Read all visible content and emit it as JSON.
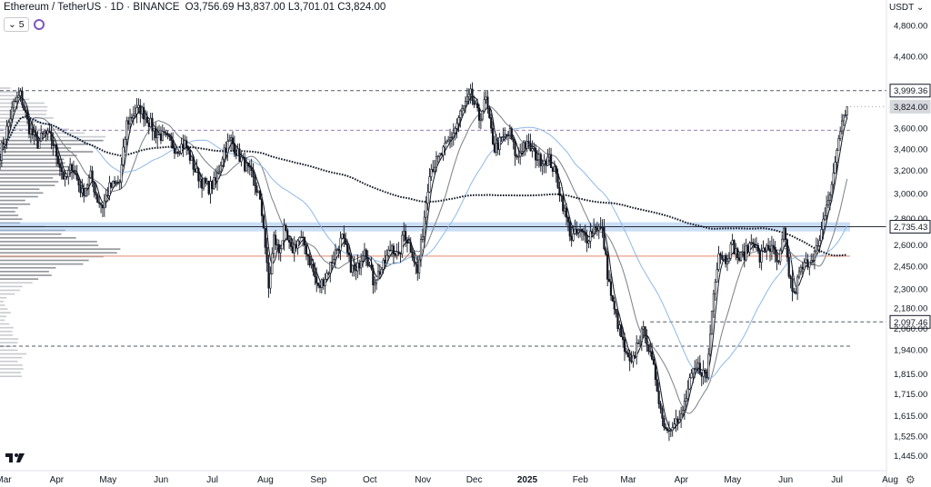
{
  "header": {
    "symbol": "Ethereum / TetherUS · 1D · BINANCE",
    "open_label": "O",
    "open": "3,756.69",
    "high_label": "H",
    "high": "3,837.00",
    "low_label": "L",
    "low": "3,701.01",
    "close_label": "C",
    "close": "3,824.00",
    "indicator_value": "5"
  },
  "currency": "USDT",
  "colors": {
    "candle": "#131722",
    "ma_slow": "#131722",
    "ma_fast": "#131722",
    "ma_light": "#7b7f86",
    "ma_blue": "#8fb9e6",
    "support_band": "#9fc3ec",
    "poc_line": "#e8a08a",
    "dashed_level": "#555a66",
    "volume_profile": "#787b86"
  },
  "chart_data": {
    "type": "candlestick",
    "symbol": "ETHUSDT",
    "interval": "1D",
    "y_scale": "log",
    "ylim": [
      1385,
      5150
    ],
    "y_ticks": [
      "4,800.00",
      "4,400.00",
      "3,999.36",
      "3,824.00",
      "3,600.00",
      "3,400.00",
      "3,200.00",
      "3,000.00",
      "2,800.00",
      "2,735.43",
      "2,600.00",
      "2,450.00",
      "2,300.00",
      "2,180.00",
      "2,097.46",
      "2,060.00",
      "1,940.00",
      "1,815.00",
      "1,715.00",
      "1,615.00",
      "1,525.00",
      "1,445.00"
    ],
    "y_tick_values": [
      4800,
      4400,
      3999.36,
      3824,
      3600,
      3400,
      3200,
      3000,
      2800,
      2735.43,
      2600,
      2450,
      2300,
      2180,
      2097.46,
      2060,
      1940,
      1815,
      1715,
      1615,
      1525,
      1445
    ],
    "x_ticks": [
      "Mar",
      "Apr",
      "May",
      "Jun",
      "Jul",
      "Aug",
      "Sep",
      "Oct",
      "Nov",
      "Dec",
      "2025",
      "Feb",
      "Mar",
      "Apr",
      "May",
      "Jun",
      "Jul",
      "Aug"
    ],
    "x_tick_days": [
      0,
      31,
      61,
      92,
      122,
      153,
      184,
      214,
      245,
      275,
      306,
      337,
      365,
      396,
      426,
      457,
      487,
      518
    ],
    "start_date": "2024-03-01",
    "levels": [
      {
        "label": "3,999.36",
        "value": 3999.36,
        "style": "dashed"
      },
      {
        "label": "3,824.00",
        "value": 3824,
        "style": "last-price"
      },
      {
        "label": "2,735.43",
        "value": 2735.43,
        "style": "solid"
      },
      {
        "label": "2,097.46",
        "value": 2097.46,
        "style": "dashed"
      },
      {
        "label": "",
        "value": 3580,
        "style": "dashed-purple"
      },
      {
        "label": "",
        "value": 1960,
        "style": "dashed"
      }
    ],
    "support_band": [
      2700,
      2770
    ],
    "poc_level": 2520,
    "anchors": [
      [
        0,
        3350
      ],
      [
        8,
        3850
      ],
      [
        12,
        3950
      ],
      [
        17,
        3600
      ],
      [
        22,
        3450
      ],
      [
        26,
        3550
      ],
      [
        30,
        3500
      ],
      [
        34,
        3300
      ],
      [
        38,
        3100
      ],
      [
        42,
        3250
      ],
      [
        48,
        3000
      ],
      [
        53,
        3150
      ],
      [
        57,
        2950
      ],
      [
        60,
        2900
      ],
      [
        64,
        3050
      ],
      [
        70,
        3100
      ],
      [
        74,
        3650
      ],
      [
        78,
        3750
      ],
      [
        82,
        3800
      ],
      [
        86,
        3700
      ],
      [
        91,
        3550
      ],
      [
        97,
        3500
      ],
      [
        103,
        3400
      ],
      [
        108,
        3450
      ],
      [
        114,
        3200
      ],
      [
        118,
        3100
      ],
      [
        122,
        3050
      ],
      [
        126,
        3100
      ],
      [
        131,
        3400
      ],
      [
        135,
        3480
      ],
      [
        139,
        3350
      ],
      [
        143,
        3250
      ],
      [
        147,
        3150
      ],
      [
        151,
        3000
      ],
      [
        154,
        2750
      ],
      [
        157,
        2300
      ],
      [
        160,
        2650
      ],
      [
        163,
        2550
      ],
      [
        166,
        2700
      ],
      [
        170,
        2550
      ],
      [
        175,
        2650
      ],
      [
        178,
        2600
      ],
      [
        182,
        2450
      ],
      [
        186,
        2300
      ],
      [
        191,
        2400
      ],
      [
        196,
        2550
      ],
      [
        200,
        2650
      ],
      [
        205,
        2450
      ],
      [
        208,
        2400
      ],
      [
        213,
        2600
      ],
      [
        218,
        2350
      ],
      [
        224,
        2450
      ],
      [
        229,
        2600
      ],
      [
        233,
        2500
      ],
      [
        236,
        2700
      ],
      [
        241,
        2550
      ],
      [
        244,
        2400
      ],
      [
        247,
        2700
      ],
      [
        251,
        3200
      ],
      [
        256,
        3300
      ],
      [
        260,
        3400
      ],
      [
        266,
        3600
      ],
      [
        269,
        3750
      ],
      [
        275,
        3950
      ],
      [
        280,
        3700
      ],
      [
        284,
        3900
      ],
      [
        286,
        3650
      ],
      [
        289,
        3400
      ],
      [
        294,
        3500
      ],
      [
        298,
        3550
      ],
      [
        302,
        3300
      ],
      [
        306,
        3450
      ],
      [
        310,
        3400
      ],
      [
        315,
        3300
      ],
      [
        321,
        3300
      ],
      [
        325,
        3150
      ],
      [
        330,
        2850
      ],
      [
        334,
        2650
      ],
      [
        338,
        2700
      ],
      [
        343,
        2650
      ],
      [
        348,
        2750
      ],
      [
        352,
        2700
      ],
      [
        355,
        2400
      ],
      [
        358,
        2200
      ],
      [
        362,
        2050
      ],
      [
        366,
        1900
      ],
      [
        369,
        1850
      ],
      [
        373,
        2000
      ],
      [
        377,
        2050
      ],
      [
        380,
        1900
      ],
      [
        383,
        1800
      ],
      [
        387,
        1600
      ],
      [
        390,
        1550
      ],
      [
        394,
        1600
      ],
      [
        397,
        1580
      ],
      [
        401,
        1700
      ],
      [
        404,
        1800
      ],
      [
        408,
        1850
      ],
      [
        413,
        1800
      ],
      [
        417,
        2300
      ],
      [
        420,
        2550
      ],
      [
        424,
        2500
      ],
      [
        428,
        2600
      ],
      [
        432,
        2500
      ],
      [
        436,
        2550
      ],
      [
        440,
        2650
      ],
      [
        444,
        2500
      ],
      [
        448,
        2600
      ],
      [
        452,
        2550
      ],
      [
        455,
        2450
      ],
      [
        458,
        2700
      ],
      [
        461,
        2400
      ],
      [
        464,
        2250
      ],
      [
        467,
        2400
      ],
      [
        470,
        2450
      ],
      [
        473,
        2500
      ],
      [
        476,
        2550
      ],
      [
        479,
        2600
      ],
      [
        482,
        2850
      ],
      [
        485,
        3000
      ],
      [
        487,
        3150
      ],
      [
        489,
        3400
      ],
      [
        491,
        3600
      ],
      [
        493,
        3700
      ],
      [
        495,
        3824
      ]
    ],
    "moving_averages": [
      {
        "kind": "ma_fast",
        "window": 5
      },
      {
        "kind": "ma_light",
        "window": 20
      },
      {
        "kind": "ma_blue",
        "window": 50
      },
      {
        "kind": "ma_slow",
        "window": 200
      }
    ]
  }
}
